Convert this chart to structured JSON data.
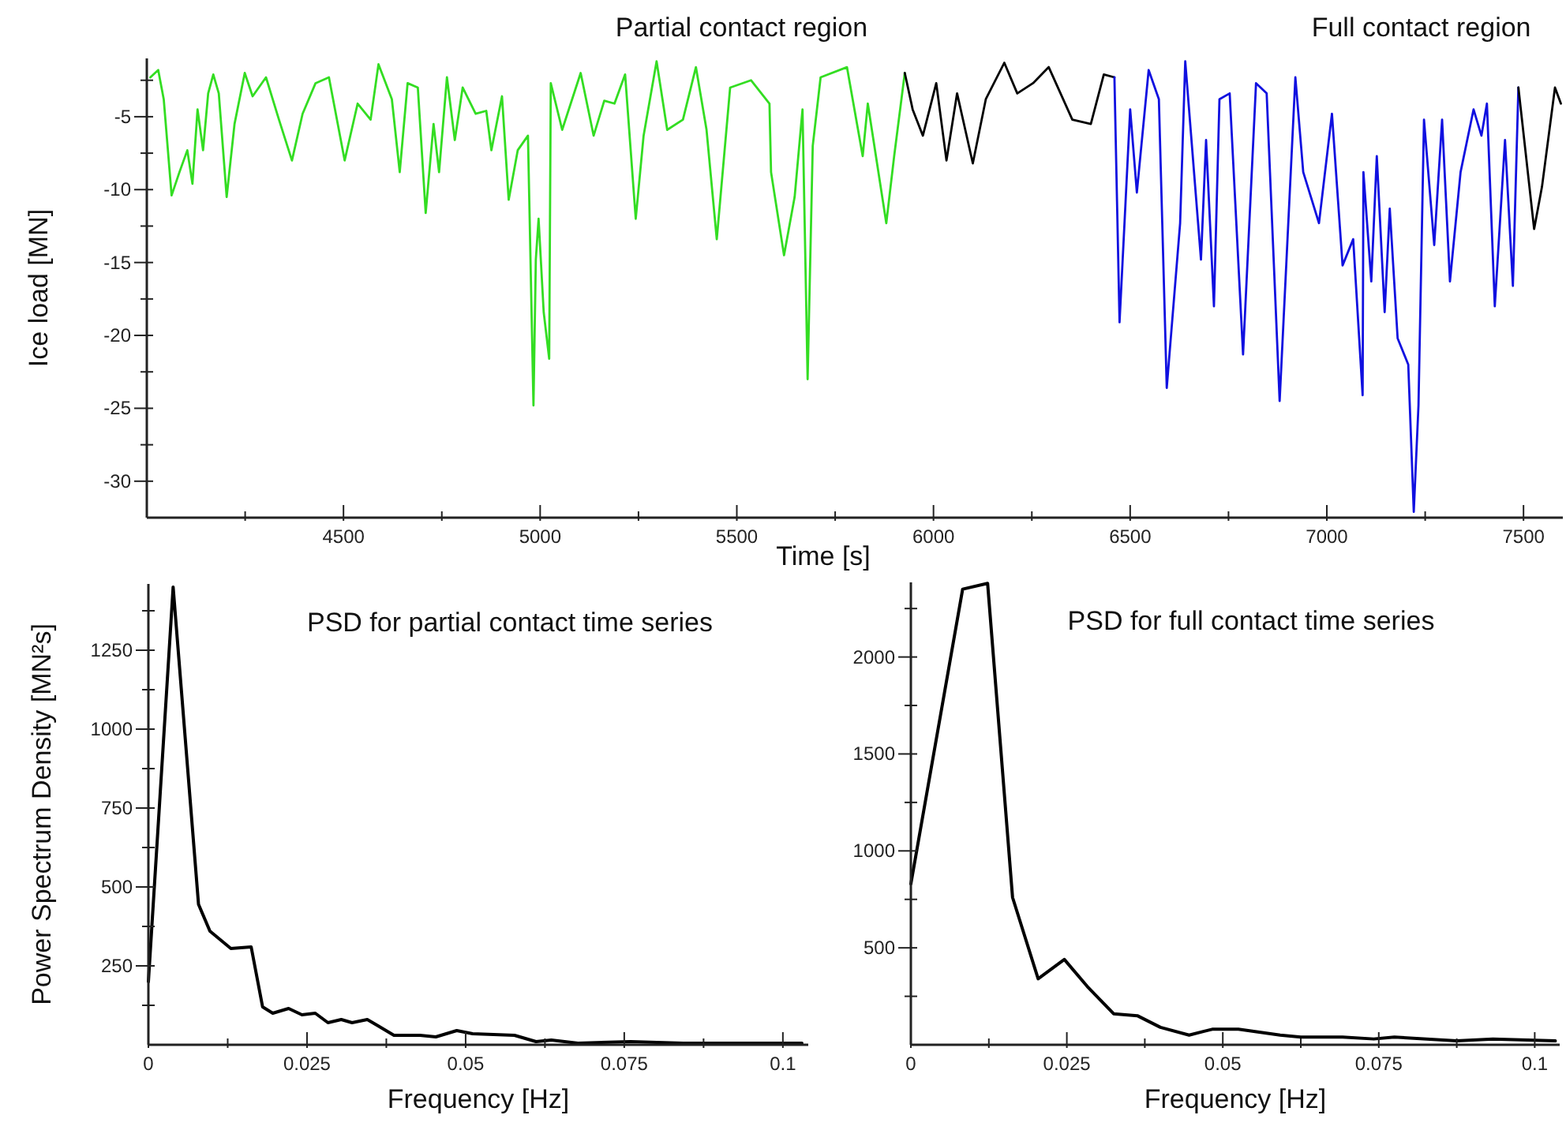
{
  "chart_data": [
    {
      "type": "line",
      "xlabel": "Time [s]",
      "ylabel": "Ice load [MN]",
      "annotations": [
        "Partial contact region",
        "Full contact region"
      ],
      "grid": false,
      "xlim": [
        4000,
        7600
      ],
      "ylim": [
        -32.5,
        -1
      ],
      "xticks": [
        {
          "value": 4250,
          "label": null
        },
        4500,
        {
          "value": 4750,
          "label": null
        },
        5000,
        {
          "value": 5250,
          "label": null
        },
        5500,
        {
          "value": 5750,
          "label": null
        },
        6000,
        {
          "value": 6250,
          "label": null
        },
        6500,
        {
          "value": 6750,
          "label": null
        },
        7000,
        {
          "value": 7250,
          "label": null
        },
        7500
      ],
      "yticks": [
        {
          "value": -2.5,
          "label": null
        },
        -5,
        {
          "value": -7.5,
          "label": null
        },
        -10,
        {
          "value": -12.5,
          "label": null
        },
        -15,
        {
          "value": -17.5,
          "label": null
        },
        -20,
        {
          "value": -22.5,
          "label": null
        },
        -25,
        {
          "value": -27.5,
          "label": null
        },
        -30
      ],
      "series": [
        {
          "color": "#33dd22",
          "x": [
            4009,
            4029,
            4043,
            4063,
            4083,
            4103,
            4116,
            4129,
            4143,
            4156,
            4169,
            4183,
            4203,
            4223,
            4249,
            4269,
            4303,
            4336,
            4369,
            4396,
            4429,
            4463,
            4503,
            4536,
            4569,
            4589,
            4623,
            4643,
            4663,
            4689,
            4709,
            4729,
            4743,
            4763,
            4783,
            4803,
            4836,
            4863,
            4876,
            4903,
            4920,
            4943,
            4969,
            4983,
            4989,
            4996,
            5009,
            5023,
            5027,
            5056,
            5103,
            5136,
            5163,
            5189,
            5216,
            5243,
            5263,
            5296,
            5323,
            5363,
            5396,
            5423,
            5449,
            5483,
            5536,
            5583,
            5587,
            5620,
            5647,
            5667,
            5680,
            5693,
            5713,
            5780,
            5820,
            5833,
            5880,
            5900,
            5927
          ],
          "values": [
            -2.3,
            -1.8,
            -3.8,
            -10.4,
            -8.8,
            -7.3,
            -9.6,
            -4.5,
            -7.3,
            -3.4,
            -2.1,
            -3.4,
            -10.5,
            -5.5,
            -2,
            -3.6,
            -2.3,
            -5.2,
            -8,
            -4.8,
            -2.7,
            -2.3,
            -8,
            -4.1,
            -5.2,
            -1.4,
            -3.8,
            -8.8,
            -2.7,
            -3,
            -11.6,
            -5.5,
            -8.8,
            -2.3,
            -6.6,
            -3,
            -4.8,
            -4.6,
            -7.3,
            -3.6,
            -10.7,
            -7.3,
            -6.3,
            -24.8,
            -14.8,
            -12,
            -18.4,
            -21.6,
            -2.7,
            -5.9,
            -2,
            -6.3,
            -3.9,
            -4.1,
            -2.1,
            -12,
            -6.3,
            -1.2,
            -5.9,
            -5.2,
            -1.6,
            -5.9,
            -13.4,
            -3,
            -2.5,
            -4.1,
            -8.8,
            -14.5,
            -10.5,
            -4.5,
            -23,
            -7,
            -2.3,
            -1.6,
            -7.7,
            -4.1,
            -12.3,
            -7.7,
            -2
          ]
        },
        {
          "color": "#000000",
          "x": [
            5927,
            5947,
            5973,
            6007,
            6033,
            6060,
            6100,
            6133,
            6180,
            6213,
            6253,
            6293,
            6353,
            6400,
            6433,
            6460
          ],
          "values": [
            -2,
            -4.5,
            -6.3,
            -2.7,
            -8,
            -3.4,
            -8.2,
            -3.8,
            -1.3,
            -3.4,
            -2.7,
            -1.6,
            -5.2,
            -5.5,
            -2.1,
            -2.3
          ]
        },
        {
          "color": "#1010e0",
          "x": [
            6460,
            6473,
            6500,
            6517,
            6547,
            6573,
            6593,
            6627,
            6640,
            6680,
            6693,
            6713,
            6727,
            6753,
            6787,
            6820,
            6847,
            6880,
            6920,
            6940,
            6980,
            7013,
            7040,
            7067,
            7091,
            7093,
            7113,
            7127,
            7147,
            7160,
            7180,
            7207,
            7221,
            7233,
            7247,
            7273,
            7293,
            7313,
            7340,
            7373,
            7393,
            7407,
            7427,
            7453,
            7473,
            7487
          ],
          "values": [
            -2.3,
            -19.1,
            -4.5,
            -10.2,
            -1.8,
            -3.8,
            -23.6,
            -12.3,
            -1.2,
            -14.8,
            -6.6,
            -18,
            -3.8,
            -3.4,
            -21.3,
            -2.7,
            -3.4,
            -24.5,
            -2.3,
            -8.8,
            -12.3,
            -4.8,
            -15.2,
            -13.4,
            -24.1,
            -8.8,
            -16.3,
            -7.7,
            -18.4,
            -11.3,
            -20.2,
            -22,
            -32.1,
            -24.8,
            -5.2,
            -13.8,
            -5.2,
            -16.3,
            -8.8,
            -4.5,
            -6.3,
            -4.1,
            -18,
            -6.6,
            -16.6,
            -3
          ]
        },
        {
          "color": "#000000",
          "x": [
            7487,
            7527,
            7547,
            7580,
            7595
          ],
          "values": [
            -3,
            -12.7,
            -9.8,
            -3,
            -4.1
          ]
        }
      ]
    },
    {
      "type": "line",
      "title": "PSD for partial contact time series",
      "xlabel": "Frequency [Hz]",
      "ylabel": "Power Spectrum Density [MN²s]",
      "grid": false,
      "xlim": [
        0,
        0.104
      ],
      "ylim": [
        0,
        1460
      ],
      "xticks": [
        0,
        {
          "value": 0.0125,
          "label": null
        },
        0.025,
        {
          "value": 0.0375,
          "label": null
        },
        0.05,
        {
          "value": 0.0625,
          "label": null
        },
        0.075,
        {
          "value": 0.0875,
          "label": null
        },
        0.1
      ],
      "yticks": [
        {
          "value": 125,
          "label": null
        },
        250,
        {
          "value": 375,
          "label": null
        },
        500,
        {
          "value": 625,
          "label": null
        },
        750,
        {
          "value": 875,
          "label": null
        },
        1000,
        {
          "value": 1125,
          "label": null
        },
        1250,
        {
          "value": 1375,
          "label": null
        }
      ],
      "series": [
        {
          "color": "#000000",
          "x": [
            0,
            0.0039,
            0.0079,
            0.0097,
            0.013,
            0.0162,
            0.018,
            0.0196,
            0.0221,
            0.0242,
            0.0263,
            0.0283,
            0.0304,
            0.0321,
            0.0345,
            0.0362,
            0.0387,
            0.0428,
            0.0453,
            0.0486,
            0.0511,
            0.0577,
            0.0611,
            0.0635,
            0.0677,
            0.076,
            0.0843,
            0.103
          ],
          "values": [
            200,
            1450,
            445,
            360,
            305,
            310,
            120,
            100,
            115,
            95,
            100,
            70,
            80,
            70,
            80,
            60,
            30,
            30,
            25,
            45,
            35,
            30,
            10,
            15,
            5,
            10,
            5,
            5
          ]
        }
      ]
    },
    {
      "type": "line",
      "title": "PSD for full contact time series",
      "xlabel": "Frequency [Hz]",
      "grid": false,
      "xlim": [
        0,
        0.104
      ],
      "ylim": [
        0,
        2385
      ],
      "xticks": [
        0,
        {
          "value": 0.0125,
          "label": null
        },
        0.025,
        {
          "value": 0.0375,
          "label": null
        },
        0.05,
        {
          "value": 0.0625,
          "label": null
        },
        0.075,
        {
          "value": 0.0875,
          "label": null
        },
        0.1
      ],
      "yticks": [
        {
          "value": 250,
          "label": null
        },
        500,
        {
          "value": 750,
          "label": null
        },
        1000,
        {
          "value": 1250,
          "label": null
        },
        1500,
        {
          "value": 1750,
          "label": null
        },
        2000,
        {
          "value": 2250,
          "label": null
        }
      ],
      "series": [
        {
          "color": "#000000",
          "x": [
            0,
            0.0083,
            0.0123,
            0.0163,
            0.0204,
            0.0246,
            0.0283,
            0.0325,
            0.0363,
            0.04,
            0.0446,
            0.0483,
            0.0525,
            0.0592,
            0.0625,
            0.0692,
            0.0742,
            0.0775,
            0.0875,
            0.0933,
            0.1033
          ],
          "values": [
            830,
            2350,
            2380,
            760,
            340,
            440,
            300,
            160,
            150,
            90,
            50,
            80,
            80,
            50,
            40,
            40,
            30,
            40,
            20,
            30,
            20
          ]
        }
      ]
    }
  ]
}
